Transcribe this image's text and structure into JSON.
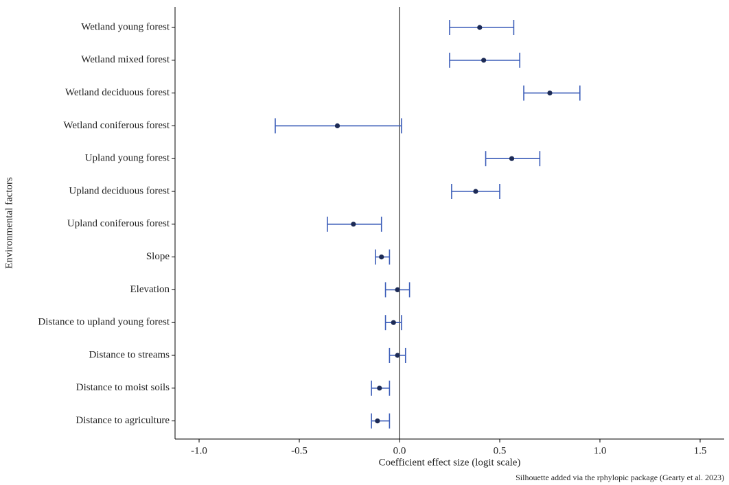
{
  "chart_data": {
    "type": "errorbar",
    "x_label": "Coefficient effect size (logit scale)",
    "y_label": "Environmental factors",
    "caption": "Silhouette added via the rphylopic package (Gearty et al. 2023)",
    "categories": [
      "Wetland young forest",
      "Wetland mixed forest",
      "Wetland deciduous forest",
      "Wetland coniferous forest",
      "Upland young forest",
      "Upland deciduous forest",
      "Upland coniferous forest",
      "Slope",
      "Elevation",
      "Distance to upland young forest",
      "Distance to streams",
      "Distance to moist soils",
      "Distance to agriculture"
    ],
    "values": [
      0.4,
      0.42,
      0.75,
      -0.31,
      0.56,
      0.38,
      -0.23,
      -0.09,
      -0.01,
      -0.03,
      -0.01,
      -0.1,
      -0.11
    ],
    "lower": [
      0.25,
      0.25,
      0.62,
      -0.62,
      0.43,
      0.26,
      -0.36,
      -0.12,
      -0.07,
      -0.07,
      -0.05,
      -0.14,
      -0.14
    ],
    "upper": [
      0.57,
      0.6,
      0.9,
      0.01,
      0.7,
      0.5,
      -0.09,
      -0.05,
      0.05,
      0.01,
      0.03,
      -0.05,
      -0.05
    ],
    "color": "#3a5cb8",
    "point_color": "#1c2a55",
    "xlim": [
      -1.12,
      1.62
    ],
    "xticks": [
      {
        "value": -1,
        "label": "-1.0"
      },
      -0.5,
      {
        "value": 0,
        "label": "0.0"
      },
      0.5,
      {
        "value": 1,
        "label": "1.0"
      },
      1.5
    ]
  }
}
